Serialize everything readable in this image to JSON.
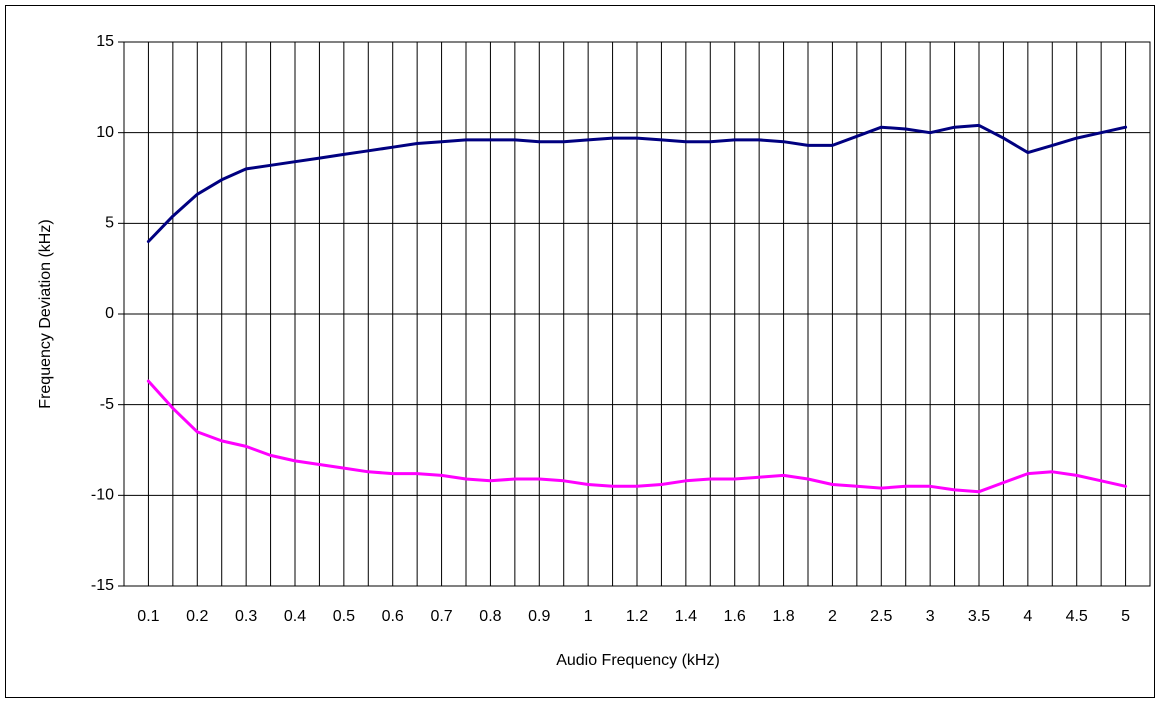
{
  "chart_data": {
    "type": "line",
    "x_label": "Audio Frequency (kHz)",
    "y_label": "Frequency Deviation (kHz)",
    "categories": [
      "0.1",
      null,
      "0.2",
      null,
      "0.3",
      null,
      "0.4",
      null,
      "0.5",
      null,
      "0.6",
      null,
      "0.7",
      null,
      "0.8",
      null,
      "0.9",
      null,
      "1",
      null,
      "1.2",
      null,
      "1.4",
      null,
      "1.6",
      null,
      "1.8",
      null,
      "2",
      null,
      "2.5",
      null,
      "3",
      null,
      "3.5",
      null,
      "4",
      null,
      "4.5",
      null,
      "5"
    ],
    "series": [
      {
        "color": "#000080",
        "values": [
          4.0,
          5.4,
          6.6,
          7.4,
          8.0,
          8.2,
          8.4,
          8.6,
          8.8,
          9.0,
          9.2,
          9.4,
          9.5,
          9.6,
          9.6,
          9.6,
          9.5,
          9.5,
          9.6,
          9.7,
          9.7,
          9.6,
          9.5,
          9.5,
          9.6,
          9.6,
          9.5,
          9.3,
          9.3,
          9.8,
          10.3,
          10.2,
          10.0,
          10.3,
          10.4,
          9.7,
          8.9,
          9.3,
          9.7,
          10.0,
          10.3
        ]
      },
      {
        "color": "#ff00ff",
        "values": [
          -3.7,
          -5.2,
          -6.5,
          -7.0,
          -7.3,
          -7.8,
          -8.1,
          -8.3,
          -8.5,
          -8.7,
          -8.8,
          -8.8,
          -8.9,
          -9.1,
          -9.2,
          -9.1,
          -9.1,
          -9.2,
          -9.4,
          -9.5,
          -9.5,
          -9.4,
          -9.2,
          -9.1,
          -9.1,
          -9.0,
          -8.9,
          -9.1,
          -9.4,
          -9.5,
          -9.6,
          -9.5,
          -9.5,
          -9.7,
          -9.8,
          -9.3,
          -8.8,
          -8.7,
          -8.9,
          -9.2,
          -9.5
        ]
      }
    ],
    "ylim": [
      -15,
      15
    ],
    "yticks": [
      -15,
      -10,
      -5,
      0,
      5,
      10,
      15
    ],
    "grid": true
  }
}
